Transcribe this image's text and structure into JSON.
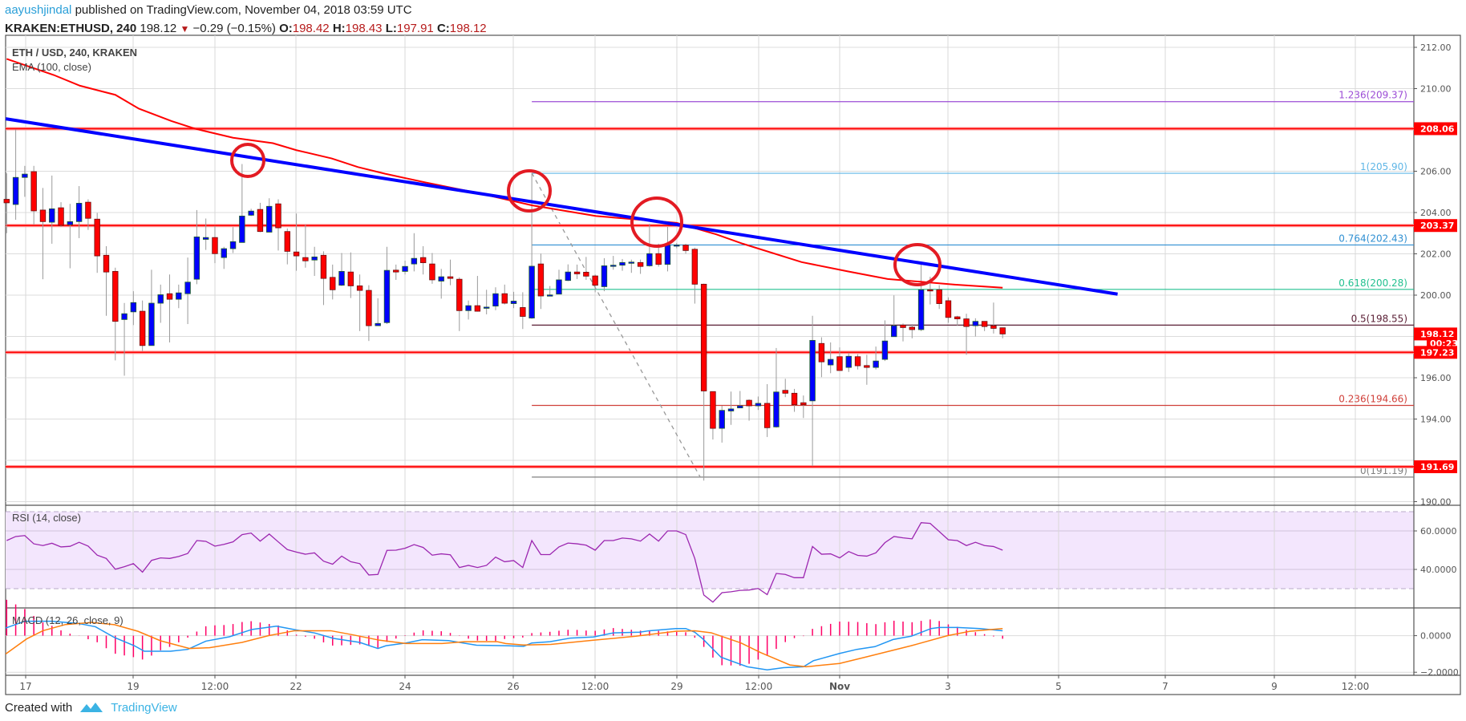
{
  "header": {
    "author": "aayushjindal",
    "published": "published on TradingView.com, November 04, 2018 03:59 UTC",
    "symbol": "KRAKEN:ETHUSD, 240",
    "last": "198.12",
    "change": "−0.29 (−0.15%)",
    "o_label": "O:",
    "o": "198.42",
    "h_label": "H:",
    "h": "198.43",
    "l_label": "L:",
    "l": "197.91",
    "c_label": "C:",
    "c": "198.12"
  },
  "legend": {
    "title": "ETH / USD, 240, KRAKEN",
    "ema": "EMA (100, close)",
    "rsi": "RSI (14, close)",
    "macd": "MACD (12, 26, close, 9)"
  },
  "price_axis": [
    "212.00",
    "210.00",
    "206.00",
    "204.00",
    "202.00",
    "200.00",
    "196.00",
    "194.00",
    "190.00"
  ],
  "rsi_axis": [
    "60.0000",
    "40.0000"
  ],
  "macd_axis": [
    "0.0000",
    "−2.0000"
  ],
  "badges": [
    {
      "text": "208.06",
      "price": 208.06
    },
    {
      "text": "203.37",
      "price": 203.37
    },
    {
      "text": "198.12",
      "price": 198.12
    },
    {
      "text": "00:23",
      "price": 197.67
    },
    {
      "text": "197.23",
      "price": 197.23
    },
    {
      "text": "191.69",
      "price": 191.69
    }
  ],
  "horizontal_levels": [
    208.06,
    203.37,
    197.23,
    191.69
  ],
  "fib": [
    {
      "label": "1.236(209.37)",
      "price": 209.37,
      "color": "#9c4dd6"
    },
    {
      "label": "1(205.90)",
      "price": 205.9,
      "color": "#5fb6e6"
    },
    {
      "label": "0.764(202.43)",
      "price": 202.43,
      "color": "#2f8fd2"
    },
    {
      "label": "0.618(200.28)",
      "price": 200.28,
      "color": "#22c08f"
    },
    {
      "label": "0.5(198.55)",
      "price": 198.55,
      "color": "#5a1f35"
    },
    {
      "label": "0.236(194.66)",
      "price": 194.66,
      "color": "#d0403a"
    },
    {
      "label": "0(191.19)",
      "price": 191.19,
      "color": "#808080"
    }
  ],
  "time_axis": [
    "17",
    "19",
    "12:00",
    "22",
    "24",
    "26",
    "12:00",
    "29",
    "12:00",
    "Nov",
    "3",
    "5",
    "7",
    "9",
    "12:00"
  ],
  "footer": {
    "created": "Created with",
    "brand": "TradingView"
  },
  "colors": {
    "up": "#0000ff",
    "down": "#ff0000",
    "ema": "#ff0000",
    "trend": "#0000ff",
    "rsi": "#9c27b0",
    "macd": "#2196f3",
    "signal": "#ff7f0e",
    "hist": "#ff0066",
    "level": "#ff0000"
  },
  "chart_data": {
    "type": "candlestick",
    "title": "ETH / USD, 240, KRAKEN",
    "ylim": [
      190,
      212
    ],
    "ohlc": [
      [
        204.64,
        205.9,
        203.0,
        204.47
      ],
      [
        204.39,
        208.02,
        203.65,
        205.7
      ],
      [
        205.7,
        206.26,
        204.76,
        205.86
      ],
      [
        205.98,
        206.26,
        203.41,
        204.08
      ],
      [
        204.12,
        205.19,
        200.77,
        203.56
      ],
      [
        203.53,
        205.79,
        202.49,
        204.18
      ],
      [
        204.23,
        204.5,
        203.3,
        203.38
      ],
      [
        203.41,
        204.42,
        201.3,
        203.56
      ],
      [
        203.56,
        205.28,
        202.76,
        204.45
      ],
      [
        204.5,
        204.64,
        203.16,
        203.72
      ],
      [
        203.68,
        203.98,
        201.08,
        201.9
      ],
      [
        201.93,
        202.37,
        199.0,
        201.12
      ],
      [
        201.15,
        201.33,
        196.84,
        198.73
      ],
      [
        198.82,
        199.62,
        196.1,
        199.1
      ],
      [
        199.19,
        200.19,
        198.55,
        199.64
      ],
      [
        199.22,
        199.74,
        197.29,
        197.56
      ],
      [
        197.56,
        201.23,
        197.56,
        199.61
      ],
      [
        199.61,
        200.51,
        198.66,
        200.02
      ],
      [
        200.07,
        201.0,
        197.71,
        199.8
      ],
      [
        199.8,
        200.51,
        199.37,
        200.11
      ],
      [
        200.07,
        201.82,
        198.6,
        200.63
      ],
      [
        200.77,
        204.12,
        200.53,
        202.82
      ],
      [
        202.7,
        203.71,
        202.19,
        202.79
      ],
      [
        202.79,
        203.35,
        201.55,
        202.01
      ],
      [
        201.82,
        202.34,
        201.27,
        202.25
      ],
      [
        202.25,
        203.29,
        202.04,
        202.59
      ],
      [
        202.55,
        206.35,
        202.55,
        203.83
      ],
      [
        203.87,
        204.18,
        203.83,
        204.07
      ],
      [
        204.15,
        204.47,
        203.05,
        203.08
      ],
      [
        203.05,
        204.69,
        203.05,
        204.3
      ],
      [
        204.42,
        204.64,
        202.16,
        203.26
      ],
      [
        203.08,
        203.23,
        201.49,
        202.12
      ],
      [
        202.09,
        203.95,
        201.18,
        201.9
      ],
      [
        201.82,
        203.41,
        201.33,
        201.66
      ],
      [
        201.7,
        202.34,
        200.93,
        201.85
      ],
      [
        201.93,
        202.12,
        199.52,
        200.81
      ],
      [
        200.86,
        201.48,
        199.79,
        200.26
      ],
      [
        200.48,
        202.04,
        200.44,
        201.15
      ],
      [
        201.12,
        202.07,
        199.86,
        200.45
      ],
      [
        200.45,
        201.0,
        198.26,
        200.23
      ],
      [
        200.23,
        200.48,
        197.78,
        198.52
      ],
      [
        198.52,
        199.85,
        198.52,
        198.63
      ],
      [
        198.67,
        202.34,
        198.6,
        201.2
      ],
      [
        201.21,
        201.48,
        200.74,
        201.12
      ],
      [
        201.15,
        201.67,
        201.0,
        201.39
      ],
      [
        201.51,
        203.0,
        201.15,
        201.78
      ],
      [
        201.82,
        202.37,
        201.0,
        201.57
      ],
      [
        201.51,
        202.04,
        200.55,
        200.74
      ],
      [
        200.68,
        201.27,
        199.83,
        200.89
      ],
      [
        200.89,
        201.72,
        200.48,
        200.81
      ],
      [
        200.77,
        200.86,
        198.26,
        199.25
      ],
      [
        199.25,
        199.74,
        198.82,
        199.49
      ],
      [
        199.49,
        200.93,
        199.2,
        199.22
      ],
      [
        199.4,
        200.26,
        199.07,
        199.42
      ],
      [
        199.47,
        200.38,
        199.27,
        200.07
      ],
      [
        200.07,
        200.51,
        199.55,
        199.61
      ],
      [
        199.59,
        200.16,
        199.37,
        199.71
      ],
      [
        199.4,
        200.14,
        198.36,
        198.97
      ],
      [
        198.89,
        205.91,
        198.85,
        201.4
      ],
      [
        201.51,
        202.01,
        199.33,
        199.96
      ],
      [
        199.96,
        200.44,
        199.96,
        200.01
      ],
      [
        200.05,
        201.23,
        200.19,
        200.74
      ],
      [
        200.71,
        201.49,
        200.68,
        201.12
      ],
      [
        201.12,
        201.48,
        200.78,
        201.03
      ],
      [
        201.11,
        201.85,
        200.74,
        200.92
      ],
      [
        200.93,
        201.0,
        200.14,
        200.48
      ],
      [
        200.41,
        201.79,
        200.19,
        201.42
      ],
      [
        201.4,
        201.9,
        201.23,
        201.45
      ],
      [
        201.45,
        201.75,
        201.18,
        201.58
      ],
      [
        201.55,
        201.72,
        201.08,
        201.6
      ],
      [
        201.58,
        201.72,
        201.03,
        201.39
      ],
      [
        201.42,
        203.46,
        201.38,
        202.01
      ],
      [
        202.01,
        202.49,
        201.38,
        201.49
      ],
      [
        201.49,
        203.31,
        201.15,
        202.42
      ],
      [
        202.4,
        202.52,
        202.27,
        202.43
      ],
      [
        202.42,
        202.49,
        202.01,
        202.16
      ],
      [
        202.22,
        202.3,
        199.59,
        200.53
      ],
      [
        200.53,
        200.56,
        191.02,
        195.36
      ],
      [
        195.33,
        195.33,
        193.01,
        193.55
      ],
      [
        193.55,
        194.64,
        192.86,
        194.42
      ],
      [
        194.39,
        195.33,
        193.72,
        194.49
      ],
      [
        194.54,
        195.36,
        194.54,
        194.64
      ],
      [
        194.91,
        194.95,
        193.92,
        194.64
      ],
      [
        194.64,
        195.09,
        194.44,
        194.76
      ],
      [
        194.76,
        195.69,
        193.13,
        193.58
      ],
      [
        193.62,
        197.44,
        193.58,
        195.31
      ],
      [
        195.39,
        195.95,
        195.06,
        195.25
      ],
      [
        195.25,
        195.46,
        194.35,
        194.69
      ],
      [
        194.79,
        195.14,
        194.05,
        194.69
      ],
      [
        194.88,
        199.0,
        191.72,
        197.81
      ],
      [
        197.66,
        197.96,
        196.03,
        196.77
      ],
      [
        196.62,
        197.71,
        196.22,
        196.89
      ],
      [
        197.02,
        197.47,
        196.35,
        196.35
      ],
      [
        196.5,
        197.21,
        196.28,
        197.04
      ],
      [
        197.02,
        197.14,
        196.4,
        196.58
      ],
      [
        196.59,
        197.11,
        195.66,
        196.5
      ],
      [
        196.5,
        197.51,
        196.4,
        196.81
      ],
      [
        196.89,
        198.78,
        196.81,
        197.78
      ],
      [
        197.99,
        199.99,
        197.99,
        198.52
      ],
      [
        198.55,
        198.63,
        197.76,
        198.43
      ],
      [
        198.45,
        198.6,
        197.91,
        198.33
      ],
      [
        198.33,
        201.52,
        198.26,
        200.26
      ],
      [
        200.26,
        200.89,
        199.55,
        200.22
      ],
      [
        200.26,
        200.48,
        199.33,
        199.59
      ],
      [
        199.73,
        199.89,
        198.66,
        198.92
      ],
      [
        198.95,
        199.0,
        198.51,
        198.85
      ],
      [
        198.85,
        199.1,
        197.11,
        198.48
      ],
      [
        198.52,
        198.88,
        198.0,
        198.73
      ],
      [
        198.73,
        198.73,
        198.26,
        198.48
      ],
      [
        198.52,
        199.64,
        198.14,
        198.39
      ],
      [
        198.42,
        198.43,
        197.91,
        198.12
      ]
    ],
    "ema100": [
      [
        0,
        211.44
      ],
      [
        5.2,
        210.66
      ],
      [
        8.1,
        210.14
      ],
      [
        12,
        209.7
      ],
      [
        14.6,
        209.03
      ],
      [
        18.2,
        208.43
      ],
      [
        20.8,
        208.06
      ],
      [
        25,
        207.62
      ],
      [
        29.4,
        207.36
      ],
      [
        32,
        207.02
      ],
      [
        35.9,
        206.62
      ],
      [
        38.8,
        206.2
      ],
      [
        41.8,
        205.88
      ],
      [
        46.2,
        205.46
      ],
      [
        52.1,
        204.94
      ],
      [
        58,
        204.35
      ],
      [
        65.1,
        203.83
      ],
      [
        74,
        203.5
      ],
      [
        78.4,
        202.94
      ],
      [
        81.3,
        202.49
      ],
      [
        87.8,
        201.6
      ],
      [
        92.9,
        201.15
      ],
      [
        97.3,
        200.78
      ],
      [
        104.7,
        200.51
      ],
      [
        110,
        200.36
      ]
    ],
    "trendline": [
      [
        -0.2,
        208.54
      ],
      [
        122.7,
        200.05
      ]
    ],
    "fib_anchor": {
      "high_index": 58,
      "high": 205.91,
      "low_index": 76.6,
      "low": 191.19
    },
    "rsi": [
      55,
      57.1,
      57.6,
      53.3,
      52.4,
      53.6,
      51.7,
      52,
      54.1,
      52.1,
      47.4,
      45.7,
      40.1,
      41.4,
      43,
      38.6,
      44.7,
      46,
      45.7,
      46.7,
      48.3,
      55,
      54.6,
      52.1,
      53,
      54.3,
      58.1,
      58.9,
      54.7,
      58.4,
      54.3,
      50.3,
      49,
      47.9,
      48.6,
      44.3,
      42.7,
      46.9,
      44,
      43,
      37.1,
      37.4,
      49.9,
      50,
      51,
      52.9,
      51.4,
      47.4,
      48.1,
      47.6,
      41,
      42.1,
      41,
      42.1,
      46.4,
      44,
      44.6,
      41,
      55,
      47.7,
      47.7,
      51.7,
      53.7,
      53.3,
      52.6,
      50,
      55,
      55,
      56.3,
      55.9,
      54.7,
      58.4,
      54.7,
      60,
      60,
      58.1,
      45.7,
      26.7,
      23,
      27.9,
      28.4,
      29.1,
      29.3,
      30.1,
      26.9,
      37.9,
      37.4,
      35.7,
      35.7,
      51.9,
      47.9,
      48.1,
      46,
      49.3,
      47.3,
      46.9,
      48.6,
      53.9,
      57.1,
      56.4,
      55.9,
      64.3,
      63.9,
      59.7,
      55.4,
      55,
      52.4,
      54.1,
      52.4,
      51.9,
      50
    ],
    "rsi_bands": [
      70,
      30
    ],
    "macd": [
      [
        -0.1,
        0.42
      ],
      [
        2,
        0.79
      ],
      [
        5,
        0.79
      ],
      [
        7.9,
        0.67
      ],
      [
        9.8,
        0.49
      ],
      [
        11.9,
        -0.1
      ],
      [
        14.1,
        -0.55
      ],
      [
        15.2,
        -0.85
      ],
      [
        18.1,
        -0.85
      ],
      [
        20,
        -0.75
      ],
      [
        22,
        -0.3
      ],
      [
        24.6,
        -0.06
      ],
      [
        27.1,
        0.34
      ],
      [
        29.8,
        0.52
      ],
      [
        32,
        0.31
      ],
      [
        34,
        0.15
      ],
      [
        36.1,
        -0.15
      ],
      [
        39,
        -0.37
      ],
      [
        41,
        -0.7
      ],
      [
        41.9,
        -0.55
      ],
      [
        44.1,
        -0.4
      ],
      [
        45.9,
        -0.22
      ],
      [
        48.8,
        -0.27
      ],
      [
        51.9,
        -0.52
      ],
      [
        55.1,
        -0.55
      ],
      [
        57.1,
        -0.58
      ],
      [
        58,
        -0.4
      ],
      [
        60,
        -0.33
      ],
      [
        62.3,
        -0.13
      ],
      [
        64.8,
        -0.07
      ],
      [
        67,
        0.15
      ],
      [
        69.9,
        0.19
      ],
      [
        71,
        0.27
      ],
      [
        73.9,
        0.39
      ],
      [
        75,
        0.39
      ],
      [
        76,
        0.19
      ],
      [
        76.9,
        -0.18
      ],
      [
        78.9,
        -1.18
      ],
      [
        81.8,
        -1.7
      ],
      [
        84,
        -1.87
      ],
      [
        85.8,
        -1.75
      ],
      [
        88,
        -1.7
      ],
      [
        89.1,
        -1.37
      ],
      [
        92,
        -0.97
      ],
      [
        93.9,
        -0.75
      ],
      [
        95.9,
        -0.6
      ],
      [
        97.9,
        -0.21
      ],
      [
        99.9,
        -0.03
      ],
      [
        102.1,
        0.39
      ],
      [
        103,
        0.45
      ],
      [
        105,
        0.45
      ],
      [
        107.5,
        0.39
      ],
      [
        110,
        0.27
      ]
    ],
    "signal": [
      [
        -0.1,
        -1.0
      ],
      [
        2.2,
        -0.18
      ],
      [
        4,
        0.27
      ],
      [
        6.5,
        0.61
      ],
      [
        9.4,
        0.72
      ],
      [
        11.9,
        0.6
      ],
      [
        14.5,
        0.24
      ],
      [
        17,
        -0.28
      ],
      [
        20.2,
        -0.7
      ],
      [
        22.4,
        -0.66
      ],
      [
        26,
        -0.37
      ],
      [
        28.9,
        0
      ],
      [
        31.8,
        0.27
      ],
      [
        35.8,
        0.27
      ],
      [
        38.3,
        0.04
      ],
      [
        41.2,
        -0.25
      ],
      [
        44.1,
        -0.43
      ],
      [
        48.1,
        -0.43
      ],
      [
        50.6,
        -0.33
      ],
      [
        54.2,
        -0.33
      ],
      [
        55.1,
        -0.43
      ],
      [
        57.1,
        -0.51
      ],
      [
        60.1,
        -0.48
      ],
      [
        64.8,
        -0.25
      ],
      [
        69.5,
        -0.03
      ],
      [
        73.9,
        0.24
      ],
      [
        76,
        0.27
      ],
      [
        77.8,
        0.16
      ],
      [
        81.1,
        -0.4
      ],
      [
        83.3,
        -0.93
      ],
      [
        86.5,
        -1.6
      ],
      [
        88.3,
        -1.7
      ],
      [
        92,
        -1.52
      ],
      [
        94.8,
        -1.18
      ],
      [
        99.9,
        -0.55
      ],
      [
        103.9,
        0
      ],
      [
        106.4,
        0.24
      ],
      [
        110,
        0.39
      ]
    ]
  }
}
